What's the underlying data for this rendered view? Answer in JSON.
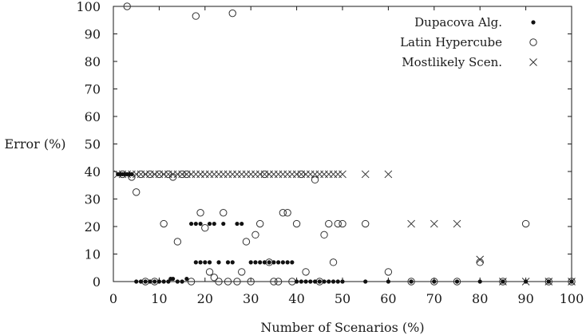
{
  "chart_data": {
    "type": "scatter",
    "xlabel": "Number of Scenarios (%)",
    "ylabel": "Error (%)",
    "xlim": [
      0,
      100
    ],
    "ylim": [
      0,
      100
    ],
    "xticks": [
      "0",
      "10",
      "20",
      "30",
      "40",
      "50",
      "60",
      "70",
      "80",
      "90",
      "100"
    ],
    "yticks": [
      "0",
      "10",
      "20",
      "30",
      "40",
      "50",
      "60",
      "70",
      "80",
      "90",
      "100"
    ],
    "grid": false,
    "legend_position": "top-right",
    "series": [
      {
        "name": "Dupacova Alg.",
        "marker": "filled-circle",
        "color": "#111111",
        "points": [
          [
            1,
            39
          ],
          [
            1.5,
            39
          ],
          [
            2,
            39
          ],
          [
            2.5,
            39
          ],
          [
            3,
            39
          ],
          [
            3.5,
            39
          ],
          [
            4,
            39
          ],
          [
            5,
            0
          ],
          [
            6,
            0
          ],
          [
            7,
            0
          ],
          [
            8,
            0
          ],
          [
            9,
            0
          ],
          [
            10,
            0
          ],
          [
            11,
            0
          ],
          [
            12,
            0
          ],
          [
            12.5,
            1
          ],
          [
            13,
            1
          ],
          [
            14,
            0
          ],
          [
            15,
            0
          ],
          [
            16,
            1
          ],
          [
            17,
            21
          ],
          [
            18,
            21
          ],
          [
            18,
            7
          ],
          [
            19,
            21
          ],
          [
            19,
            7
          ],
          [
            20,
            7
          ],
          [
            21,
            7
          ],
          [
            21,
            21
          ],
          [
            22,
            21
          ],
          [
            23,
            7
          ],
          [
            24,
            21
          ],
          [
            25,
            7
          ],
          [
            26,
            7
          ],
          [
            27,
            21
          ],
          [
            28,
            21
          ],
          [
            30,
            7
          ],
          [
            31,
            7
          ],
          [
            32,
            7
          ],
          [
            33,
            7
          ],
          [
            34,
            7
          ],
          [
            35,
            7
          ],
          [
            36,
            7
          ],
          [
            37,
            7
          ],
          [
            38,
            7
          ],
          [
            39,
            7
          ],
          [
            40,
            0
          ],
          [
            41,
            0
          ],
          [
            42,
            0
          ],
          [
            43,
            0
          ],
          [
            44,
            0
          ],
          [
            45,
            0
          ],
          [
            46,
            0
          ],
          [
            47,
            0
          ],
          [
            48,
            0
          ],
          [
            49,
            0
          ],
          [
            50,
            0
          ],
          [
            55,
            0
          ],
          [
            60,
            0
          ],
          [
            65,
            0
          ],
          [
            70,
            0
          ],
          [
            75,
            0
          ],
          [
            80,
            0
          ],
          [
            85,
            0
          ],
          [
            90,
            0
          ],
          [
            95,
            0
          ],
          [
            100,
            0
          ]
        ]
      },
      {
        "name": "Latin Hypercube",
        "marker": "open-circle",
        "color": "#111111",
        "points": [
          [
            2,
            39
          ],
          [
            3,
            100
          ],
          [
            4,
            38
          ],
          [
            5,
            32.5
          ],
          [
            6,
            39
          ],
          [
            7,
            0
          ],
          [
            8,
            39
          ],
          [
            9,
            0
          ],
          [
            10,
            39
          ],
          [
            11,
            21
          ],
          [
            12,
            39
          ],
          [
            13,
            38
          ],
          [
            14,
            14.5
          ],
          [
            15,
            39
          ],
          [
            16,
            39
          ],
          [
            17,
            0
          ],
          [
            18,
            96.5
          ],
          [
            19,
            25
          ],
          [
            20,
            19.5
          ],
          [
            21,
            3.5
          ],
          [
            22,
            1.5
          ],
          [
            23,
            0
          ],
          [
            24,
            25
          ],
          [
            25,
            0
          ],
          [
            26,
            97.5
          ],
          [
            27,
            0
          ],
          [
            28,
            3.5
          ],
          [
            29,
            14.5
          ],
          [
            30,
            0
          ],
          [
            31,
            17
          ],
          [
            32,
            21
          ],
          [
            33,
            39
          ],
          [
            34,
            7
          ],
          [
            35,
            0
          ],
          [
            36,
            0
          ],
          [
            37,
            25
          ],
          [
            38,
            25
          ],
          [
            39,
            0
          ],
          [
            40,
            21
          ],
          [
            41,
            39
          ],
          [
            42,
            3.5
          ],
          [
            44,
            37
          ],
          [
            45,
            0
          ],
          [
            46,
            17
          ],
          [
            47,
            21
          ],
          [
            48,
            7
          ],
          [
            49,
            21
          ],
          [
            50,
            21
          ],
          [
            55,
            21
          ],
          [
            60,
            3.5
          ],
          [
            65,
            0
          ],
          [
            70,
            0
          ],
          [
            75,
            0
          ],
          [
            80,
            7
          ],
          [
            85,
            0
          ],
          [
            90,
            21
          ],
          [
            95,
            0
          ],
          [
            100,
            0
          ]
        ]
      },
      {
        "name": "Mostlikely Scen.",
        "marker": "cross",
        "color": "#111111",
        "points": [
          [
            1,
            39
          ],
          [
            2,
            39
          ],
          [
            3,
            39
          ],
          [
            4,
            39
          ],
          [
            5,
            39
          ],
          [
            6,
            39
          ],
          [
            7,
            39
          ],
          [
            8,
            39
          ],
          [
            9,
            39
          ],
          [
            10,
            39
          ],
          [
            11,
            39
          ],
          [
            12,
            39
          ],
          [
            13,
            39
          ],
          [
            14,
            39
          ],
          [
            15,
            39
          ],
          [
            16,
            39
          ],
          [
            17,
            39
          ],
          [
            18,
            39
          ],
          [
            19,
            39
          ],
          [
            20,
            39
          ],
          [
            21,
            39
          ],
          [
            22,
            39
          ],
          [
            23,
            39
          ],
          [
            24,
            39
          ],
          [
            25,
            39
          ],
          [
            26,
            39
          ],
          [
            27,
            39
          ],
          [
            28,
            39
          ],
          [
            29,
            39
          ],
          [
            30,
            39
          ],
          [
            31,
            39
          ],
          [
            32,
            39
          ],
          [
            33,
            39
          ],
          [
            34,
            39
          ],
          [
            35,
            39
          ],
          [
            36,
            39
          ],
          [
            37,
            39
          ],
          [
            38,
            39
          ],
          [
            39,
            39
          ],
          [
            40,
            39
          ],
          [
            41,
            39
          ],
          [
            42,
            39
          ],
          [
            43,
            39
          ],
          [
            44,
            39
          ],
          [
            45,
            39
          ],
          [
            46,
            39
          ],
          [
            47,
            39
          ],
          [
            48,
            39
          ],
          [
            49,
            39
          ],
          [
            50,
            39
          ],
          [
            55,
            39
          ],
          [
            60,
            39
          ],
          [
            65,
            21
          ],
          [
            70,
            21
          ],
          [
            75,
            21
          ],
          [
            80,
            8
          ],
          [
            85,
            0
          ],
          [
            90,
            0
          ],
          [
            95,
            0
          ],
          [
            100,
            0
          ]
        ]
      }
    ]
  }
}
